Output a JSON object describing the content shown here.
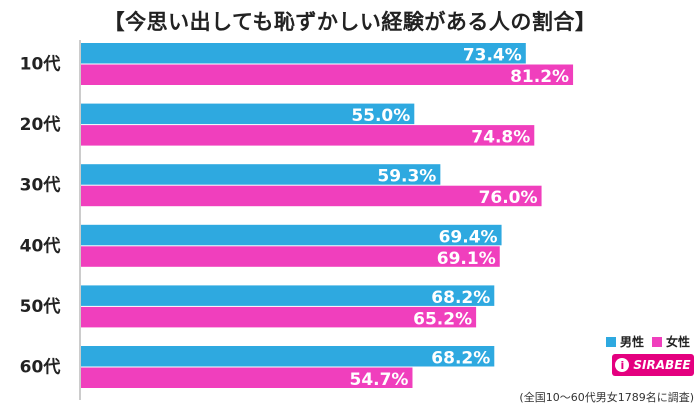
{
  "chart_data": {
    "type": "bar",
    "orientation": "horizontal",
    "title": "【今思い出しても恥ずかしい経験がある人の割合】",
    "categories": [
      "10代",
      "20代",
      "30代",
      "40代",
      "50代",
      "60代"
    ],
    "series": [
      {
        "name": "男性",
        "color": "#2ea9e0",
        "values": [
          73.4,
          55.0,
          59.3,
          69.4,
          68.2,
          68.2
        ],
        "labels": [
          "73.4%",
          "55.0%",
          "59.3%",
          "69.4%",
          "68.2%",
          "68.2%"
        ]
      },
      {
        "name": "女性",
        "color": "#f03fbd",
        "values": [
          81.2,
          74.8,
          76.0,
          69.1,
          65.2,
          54.7
        ],
        "labels": [
          "81.2%",
          "74.8%",
          "76.0%",
          "69.1%",
          "65.2%",
          "54.7%"
        ]
      }
    ],
    "xlim": [
      0,
      100
    ],
    "legend": "bottom-right",
    "footnote": "(全国10～60代男女1789名に調査)"
  },
  "logo": {
    "text": "SIRABEE",
    "mark": "i"
  }
}
